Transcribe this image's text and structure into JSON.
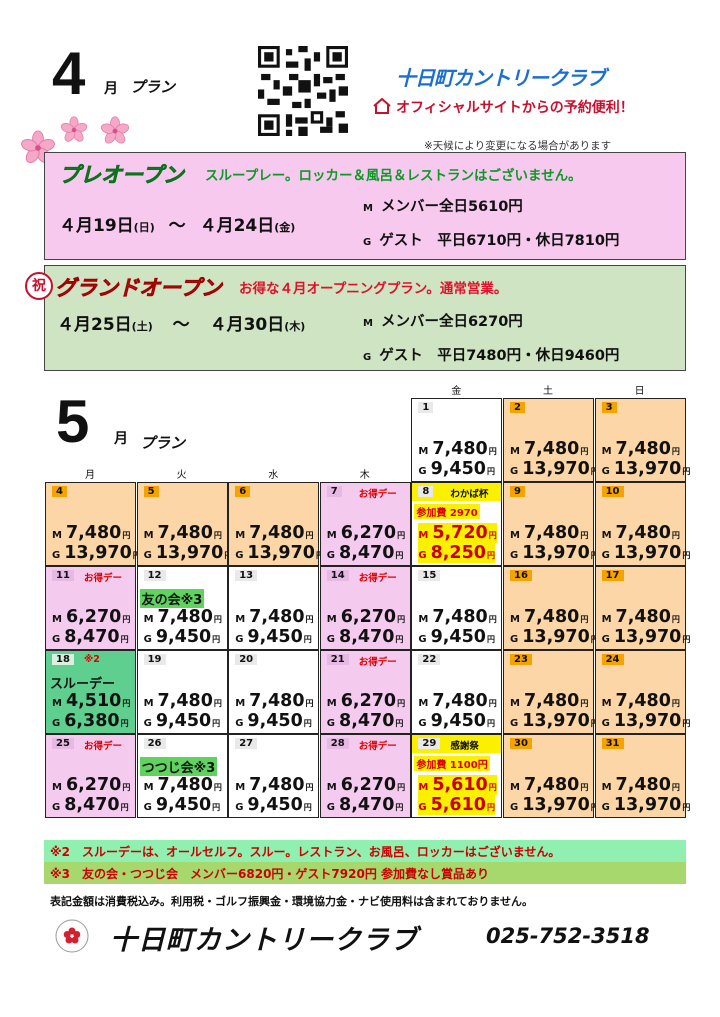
{
  "april": {
    "month": "4",
    "kanji": "月",
    "plan": "プラン"
  },
  "brand": {
    "name": "十日町カントリークラブ",
    "official": "オフィシャルサイトからの予約便利！"
  },
  "weather_note": "※天候により変更になる場合があります",
  "pre_open": {
    "title": "プレオープン",
    "subtitle": "スループレー。ロッカー＆風呂＆レストランはございません。",
    "date_from": "４月19日",
    "dow_from": "(日)",
    "tilde": "～",
    "date_to": "４月24日",
    "dow_to": "(金)",
    "member_tag": "M",
    "member": "メンバー全日5610円",
    "guest_tag": "G",
    "guest": "ゲスト　平日6710円・休日7810円"
  },
  "grand_open": {
    "celebrate": "祝",
    "title": "グランドオープン",
    "subtitle": "お得な４月オープニングプラン。通常営業。",
    "date_from": "４月25日",
    "dow_from": "(土)",
    "tilde": "～",
    "date_to": "４月30日",
    "dow_to": "(木)",
    "member_tag": "M",
    "member": "メンバー全日6270円",
    "guest_tag": "G",
    "guest": "ゲスト　平日7480円・休日9460円"
  },
  "may": {
    "month": "5",
    "kanji": "月",
    "plan": "プラン"
  },
  "weekdays": [
    "月",
    "火",
    "水",
    "木",
    "金",
    "土",
    "日"
  ],
  "calendar": [
    {
      "day": "1",
      "color": "white",
      "m": "7,480",
      "g": "9,450"
    },
    {
      "day": "2",
      "color": "orange",
      "m": "7,480",
      "g": "13,970"
    },
    {
      "day": "3",
      "color": "orange",
      "m": "7,480",
      "g": "13,970"
    },
    {
      "day": "4",
      "color": "orange",
      "m": "7,480",
      "g": "13,970"
    },
    {
      "day": "5",
      "color": "orange",
      "m": "7,480",
      "g": "13,970"
    },
    {
      "day": "6",
      "color": "orange",
      "m": "7,480",
      "g": "13,970"
    },
    {
      "day": "7",
      "color": "pink",
      "note": "お得デー",
      "m": "6,270",
      "g": "8,470"
    },
    {
      "day": "8",
      "color": "white",
      "yellow": true,
      "note": "わかば杯",
      "event": "参加費 2970",
      "m": "5,720",
      "g": "8,250",
      "hl": true
    },
    {
      "day": "9",
      "color": "orange",
      "m": "7,480",
      "g": "13,970"
    },
    {
      "day": "10",
      "color": "orange",
      "m": "7,480",
      "g": "13,970"
    },
    {
      "day": "11",
      "color": "pink",
      "note": "お得デー",
      "m": "6,270",
      "g": "8,470"
    },
    {
      "day": "12",
      "color": "white",
      "event": "友の会※3",
      "eventbg": "green",
      "m": "7,480",
      "g": "9,450"
    },
    {
      "day": "13",
      "color": "white",
      "m": "7,480",
      "g": "9,450"
    },
    {
      "day": "14",
      "color": "pink",
      "note": "お得デー",
      "m": "6,270",
      "g": "8,470"
    },
    {
      "day": "15",
      "color": "white",
      "m": "7,480",
      "g": "9,450"
    },
    {
      "day": "16",
      "color": "orange",
      "m": "7,480",
      "g": "13,970"
    },
    {
      "day": "17",
      "color": "orange",
      "m": "7,480",
      "g": "13,970"
    },
    {
      "day": "18",
      "color": "green",
      "note": "※2",
      "event": "スルーデー",
      "m": "4,510",
      "g": "6,380"
    },
    {
      "day": "19",
      "color": "white",
      "m": "7,480",
      "g": "9,450"
    },
    {
      "day": "20",
      "color": "white",
      "m": "7,480",
      "g": "9,450"
    },
    {
      "day": "21",
      "color": "pink",
      "note": "お得デー",
      "m": "6,270",
      "g": "8,470"
    },
    {
      "day": "22",
      "color": "white",
      "m": "7,480",
      "g": "9,450"
    },
    {
      "day": "23",
      "color": "orange",
      "m": "7,480",
      "g": "13,970"
    },
    {
      "day": "24",
      "color": "orange",
      "m": "7,480",
      "g": "13,970"
    },
    {
      "day": "25",
      "color": "pink",
      "note": "お得デー",
      "m": "6,270",
      "g": "8,470"
    },
    {
      "day": "26",
      "color": "white",
      "event": "つつじ会※3",
      "eventbg": "green",
      "m": "7,480",
      "g": "9,450"
    },
    {
      "day": "27",
      "color": "white",
      "m": "7,480",
      "g": "9,450"
    },
    {
      "day": "28",
      "color": "pink",
      "note": "お得デー",
      "m": "6,270",
      "g": "8,470"
    },
    {
      "day": "29",
      "color": "white",
      "yellow": true,
      "note": "感謝祭",
      "event": "参加費 1100円",
      "m": "5,610",
      "g": "5,610",
      "hl": true
    },
    {
      "day": "30",
      "color": "orange",
      "m": "7,480",
      "g": "13,970"
    },
    {
      "day": "31",
      "color": "orange",
      "m": "7,480",
      "g": "13,970"
    }
  ],
  "price_labels": {
    "m": "M",
    "g": "G",
    "unit": "円"
  },
  "notes": {
    "note2": "※2　スルーデーは、オールセルフ。スルー。レストラン、お風呂、ロッカーはございません。",
    "note3": "※3　友の会・つつじ会　メンバー6820円・ゲスト7920円 参加費なし賞品あり",
    "disclaimer": "表記金額は消費税込み。利用税・ゴルフ振興金・環境協力金・ナビ使用料は含まれておりません。"
  },
  "footer": {
    "name": "十日町カントリークラブ",
    "phone": "025-752-3518"
  },
  "colors": {
    "orange": "#fcd6a6",
    "pink": "#f4cbef",
    "green": "#5fcf8f",
    "yellow": "#fbf000"
  }
}
